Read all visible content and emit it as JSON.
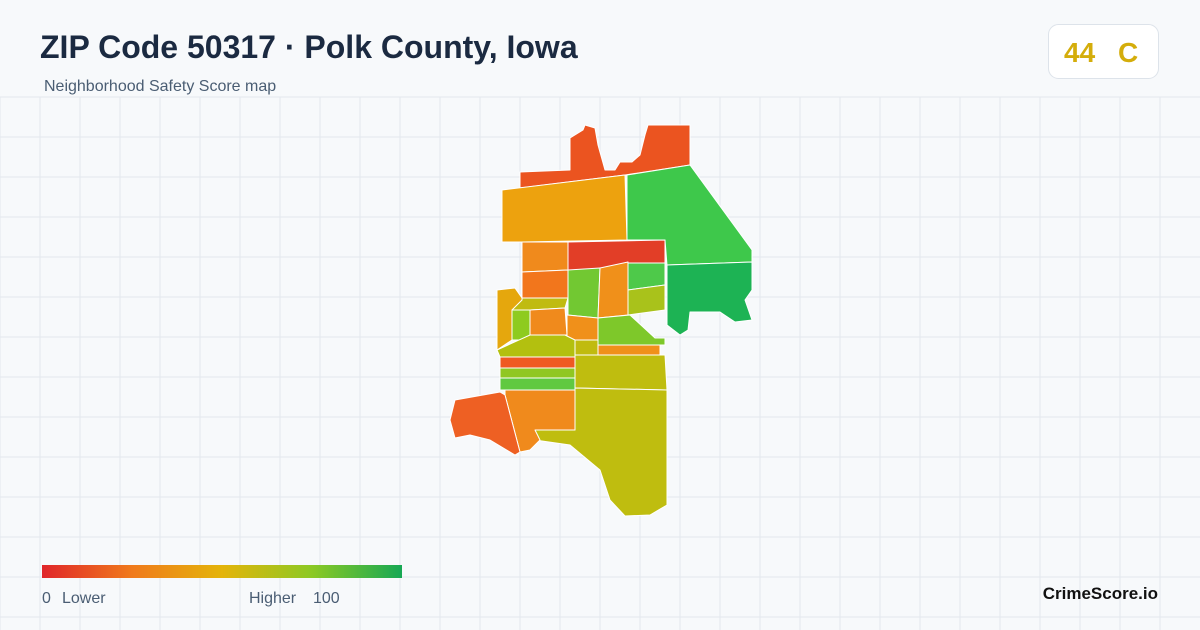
{
  "header": {
    "title": "ZIP Code 50317 · Polk County, Iowa",
    "subtitle": "Neighborhood Safety Score map"
  },
  "score_badge": {
    "score": "44",
    "grade": "C"
  },
  "legend": {
    "min": "0",
    "min_label": "Lower",
    "max_label": "Higher",
    "max": "100"
  },
  "brand": "CrimeScore.io"
}
